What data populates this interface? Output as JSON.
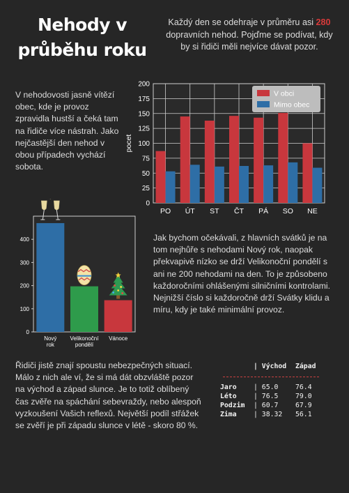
{
  "title": "Nehody v průběhu roku",
  "intro": {
    "before": "Každý den se odehraje v průměru asi ",
    "highlight": "280",
    "after": " dopravních nehod. Pojďme se podívat, kdy by si řidiči měli nejvíce dávat pozor."
  },
  "paragraphs": {
    "p1": "V nehodovosti jasně vítězí obec, kde je provoz zpravidla hustší a čeká tam na řidiče více nástrah. Jako nejčastější den nehod v obou případech vychází sobota.",
    "p2": "Jak bychom očekávali, z hlavních svátků je na tom nejhůře s nehodami Nový rok, naopak překvapivě nízko se drží Velikonoční pondělí s ani ne 200 nehodami na den. To je způsobeno každoročními ohlášenými silničními kontrolami. Nejnižší číslo si každoročně drží Svátky klidu a míru, kdy je také minimální provoz.",
    "p3": "Řidiči jistě znají spoustu nebezpečných situací.  Málo z nich ale ví, že si má dát obzvláště pozor na východ a západ slunce. Je to totiž oblíbený čas zvěře na spáchání sebevraždy, nebo alespoň vyzkoušení Vašich reflexů.  Největší podíl střážek  se zvěří je při západu slunce v létě - skoro 80 %."
  },
  "colors": {
    "red": "#c8373d",
    "blue": "#2e6ea6",
    "green": "#2e9b4b"
  },
  "chart_data": [
    {
      "type": "bar",
      "categories": [
        "PO",
        "ÚT",
        "ST",
        "ČT",
        "PÁ",
        "SO",
        "NE"
      ],
      "series": [
        {
          "name": "V obci",
          "color": "#c8373d",
          "values": [
            87,
            145,
            138,
            146,
            143,
            151,
            100
          ]
        },
        {
          "name": "Mimo obec",
          "color": "#2e6ea6",
          "values": [
            53,
            64,
            61,
            62,
            63,
            68,
            59
          ]
        }
      ],
      "ylabel": "pocet",
      "ylim": [
        0,
        200
      ],
      "yticks": [
        0,
        25,
        50,
        75,
        100,
        125,
        150,
        175,
        200
      ],
      "grid": true,
      "legend": "top-right"
    },
    {
      "type": "bar",
      "categories": [
        "Nový rok",
        "Velikonoční pondělí",
        "Vánoce"
      ],
      "colors": [
        "#2e6ea6",
        "#2e9b4b",
        "#c8373d"
      ],
      "values": [
        470,
        197,
        137
      ],
      "icons": [
        "champagne-glasses-icon",
        "easter-egg-icon",
        "christmas-tree-icon"
      ],
      "ylim": [
        0,
        500
      ],
      "yticks": [
        0,
        100,
        200,
        300,
        400
      ],
      "grid": false
    }
  ],
  "season_table": {
    "headers": [
      "",
      "| Východ",
      "Západ"
    ],
    "rows": [
      [
        "Jaro",
        "| 65.0",
        "76.4"
      ],
      [
        "Léto",
        "| 76.5",
        "79.0"
      ],
      [
        "Podzim",
        "| 60.7",
        "67.9"
      ],
      [
        "Zima",
        "| 38.32",
        "56.1"
      ]
    ]
  }
}
